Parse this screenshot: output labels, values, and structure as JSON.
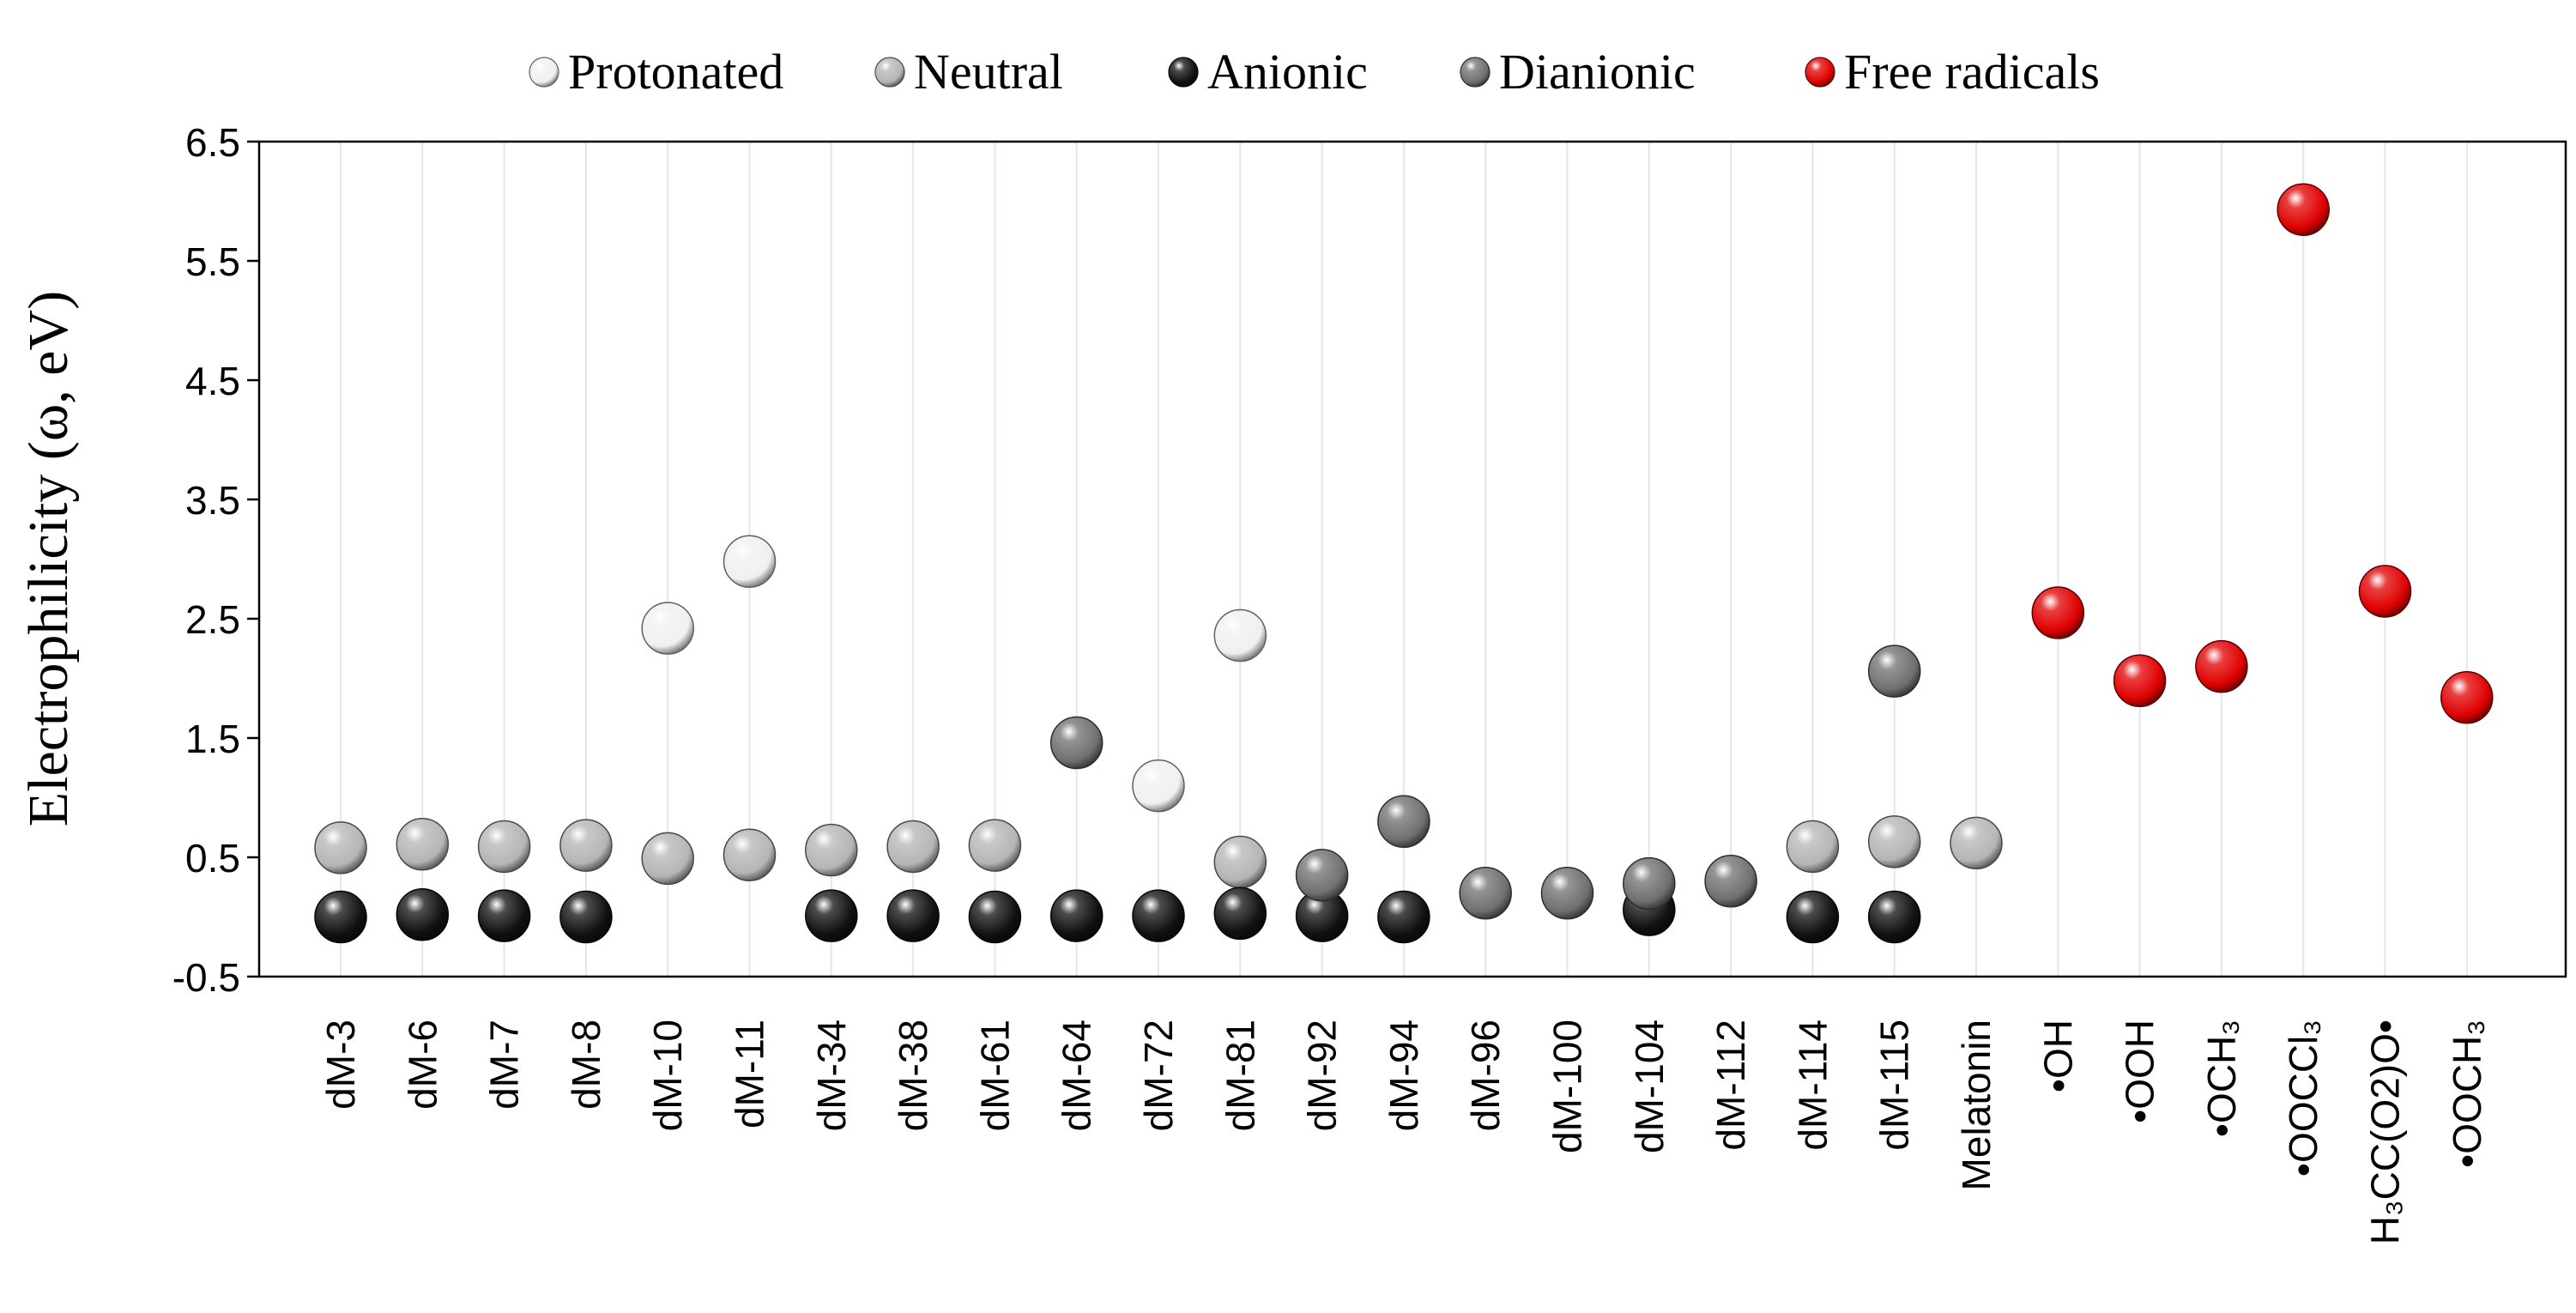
{
  "chart_data": {
    "type": "scatter",
    "title": "",
    "xlabel": "",
    "ylabel": "Electrophilicity (ω, eV)",
    "ylim": [
      -0.5,
      6.5
    ],
    "yticks": [
      "6.5",
      "5.5",
      "4.5",
      "3.5",
      "2.5",
      "1.5",
      "0.5",
      "-0.5"
    ],
    "legend_position": "top",
    "grid": "vertical",
    "categories": [
      "dM-3",
      "dM-6",
      "dM-7",
      "dM-8",
      "dM-10",
      "dM-11",
      "dM-34",
      "dM-38",
      "dM-61",
      "dM-64",
      "dM-72",
      "dM-81",
      "dM-92",
      "dM-94",
      "dM-96",
      "dM-100",
      "dM-104",
      "dM-112",
      "dM-114",
      "dM-115",
      "Melatonin",
      "•OH",
      "•OOH",
      "•OCH₃",
      "•OOCCl₃",
      "H₃CC(O2)O•",
      "•OOCH₃"
    ],
    "series": [
      {
        "name": "Protonated",
        "color": "#f0f0f0",
        "points": [
          {
            "x": "dM-10",
            "y": 2.42
          },
          {
            "x": "dM-11",
            "y": 2.98
          },
          {
            "x": "dM-72",
            "y": 1.1
          },
          {
            "x": "dM-81",
            "y": 2.36
          }
        ]
      },
      {
        "name": "Neutral",
        "color": "#b5b5b5",
        "points": [
          {
            "x": "dM-3",
            "y": 0.58
          },
          {
            "x": "dM-6",
            "y": 0.61
          },
          {
            "x": "dM-7",
            "y": 0.59
          },
          {
            "x": "dM-8",
            "y": 0.6
          },
          {
            "x": "dM-10",
            "y": 0.49
          },
          {
            "x": "dM-11",
            "y": 0.52
          },
          {
            "x": "dM-34",
            "y": 0.56
          },
          {
            "x": "dM-38",
            "y": 0.59
          },
          {
            "x": "dM-61",
            "y": 0.6
          },
          {
            "x": "dM-81",
            "y": 0.46
          },
          {
            "x": "dM-114",
            "y": 0.59
          },
          {
            "x": "dM-115",
            "y": 0.63
          },
          {
            "x": "Melatonin",
            "y": 0.62
          }
        ]
      },
      {
        "name": "Anionic",
        "color": "#111111",
        "points": [
          {
            "x": "dM-3",
            "y": 0.0
          },
          {
            "x": "dM-6",
            "y": 0.02
          },
          {
            "x": "dM-7",
            "y": 0.01
          },
          {
            "x": "dM-8",
            "y": 0.0
          },
          {
            "x": "dM-34",
            "y": 0.01
          },
          {
            "x": "dM-38",
            "y": 0.01
          },
          {
            "x": "dM-61",
            "y": 0.0
          },
          {
            "x": "dM-64",
            "y": 0.01
          },
          {
            "x": "dM-72",
            "y": 0.01
          },
          {
            "x": "dM-81",
            "y": 0.03
          },
          {
            "x": "dM-92",
            "y": 0.01
          },
          {
            "x": "dM-94",
            "y": 0.0
          },
          {
            "x": "dM-104",
            "y": 0.06
          },
          {
            "x": "dM-114",
            "y": 0.0
          },
          {
            "x": "dM-115",
            "y": 0.0
          }
        ]
      },
      {
        "name": "Dianionic",
        "color": "#707070",
        "points": [
          {
            "x": "dM-64",
            "y": 1.46
          },
          {
            "x": "dM-92",
            "y": 0.35
          },
          {
            "x": "dM-94",
            "y": 0.8
          },
          {
            "x": "dM-96",
            "y": 0.2
          },
          {
            "x": "dM-100",
            "y": 0.2
          },
          {
            "x": "dM-104",
            "y": 0.28
          },
          {
            "x": "dM-112",
            "y": 0.3
          },
          {
            "x": "dM-115",
            "y": 2.06
          }
        ]
      },
      {
        "name": "Free radicals",
        "color": "#e00000",
        "points": [
          {
            "x": "•OH",
            "y": 2.55
          },
          {
            "x": "•OOH",
            "y": 1.98
          },
          {
            "x": "•OCH₃",
            "y": 2.1
          },
          {
            "x": "•OOCCl₃",
            "y": 5.93
          },
          {
            "x": "H₃CC(O2)O•",
            "y": 2.73
          },
          {
            "x": "•OOCH₃",
            "y": 1.84
          }
        ]
      }
    ]
  }
}
